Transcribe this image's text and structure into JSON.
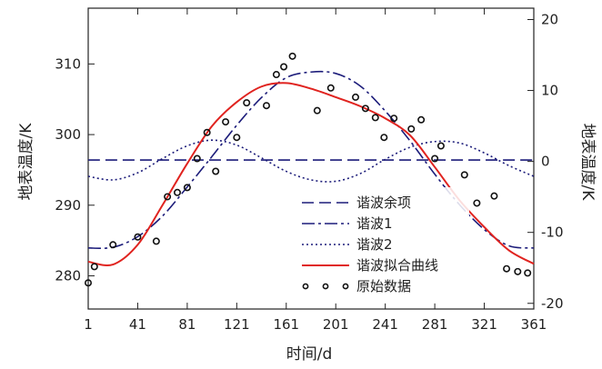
{
  "chart_data": {
    "type": "line",
    "xlabel": "时间/d",
    "ylabel_left": "地表温度/K",
    "ylabel_right": "地表温度/K",
    "xlim": [
      1,
      361
    ],
    "ylim_left": [
      275.3,
      317.9
    ],
    "ylim_right": [
      -20.8,
      21.6
    ],
    "xticks": [
      1,
      41,
      81,
      121,
      161,
      201,
      241,
      281,
      321,
      361
    ],
    "yticks_left": [
      280,
      290,
      300,
      310
    ],
    "yticks_right": [
      -20,
      -10,
      0,
      10,
      20
    ],
    "grid": false,
    "legend_position": "bottom-center",
    "series": [
      {
        "name": "谐波余项",
        "axis": "right",
        "style": "dashed",
        "color": "#1c1c7a",
        "x": [
          1,
          361
        ],
        "y": [
          0.2,
          0.2
        ]
      },
      {
        "name": "谐波1",
        "axis": "right",
        "style": "dash-dot",
        "color": "#1c1c7a",
        "x": [
          1,
          21,
          41,
          61,
          81,
          101,
          121,
          141,
          161,
          181,
          201,
          221,
          241,
          261,
          281,
          301,
          321,
          341,
          361
        ],
        "y": [
          -12.2,
          -12.1,
          -10.6,
          -7.7,
          -3.6,
          0.7,
          5.1,
          9.0,
          11.8,
          12.6,
          12.4,
          10.6,
          7.1,
          2.9,
          -1.8,
          -6.1,
          -9.6,
          -11.9,
          -12.2
        ]
      },
      {
        "name": "谐波2",
        "axis": "right",
        "style": "dotted",
        "color": "#1c1c7a",
        "x": [
          1,
          21,
          41,
          61,
          81,
          101,
          121,
          141,
          161,
          181,
          201,
          221,
          241,
          261,
          281,
          301,
          321,
          341,
          361
        ],
        "y": [
          -2.1,
          -2.6,
          -1.6,
          0.4,
          2.2,
          3.0,
          2.3,
          0.5,
          -1.4,
          -2.6,
          -2.8,
          -1.7,
          0.3,
          2.0,
          2.8,
          2.6,
          1.2,
          -0.6,
          -2.1
        ]
      },
      {
        "name": "谐波拟合曲线",
        "axis": "left",
        "style": "solid",
        "color": "#e0231f",
        "x": [
          1,
          21,
          41,
          61,
          81,
          101,
          121,
          141,
          161,
          181,
          201,
          221,
          241,
          261,
          281,
          301,
          321,
          341,
          361
        ],
        "y": [
          282.0,
          281.6,
          284.4,
          290.0,
          295.9,
          301.2,
          304.6,
          306.8,
          307.3,
          306.5,
          305.3,
          304.0,
          302.3,
          299.9,
          295.4,
          290.7,
          286.9,
          283.6,
          281.7
        ]
      },
      {
        "name": "原始数据",
        "axis": "left",
        "style": "markers",
        "color": "#111111",
        "x": [
          1,
          6,
          21,
          41,
          56,
          65,
          73,
          81,
          89,
          97,
          104,
          112,
          121,
          129,
          145,
          153,
          159,
          166,
          186,
          197,
          217,
          225,
          233,
          240,
          248,
          262,
          270,
          281,
          286,
          305,
          315,
          329,
          339,
          348,
          356
        ],
        "y": [
          279.0,
          281.3,
          284.4,
          285.5,
          284.9,
          291.2,
          291.8,
          292.5,
          296.6,
          300.3,
          294.8,
          301.8,
          299.6,
          304.5,
          304.1,
          308.5,
          309.6,
          311.1,
          303.4,
          306.6,
          305.3,
          303.7,
          302.4,
          299.6,
          302.3,
          300.8,
          302.1,
          296.6,
          298.4,
          294.3,
          290.3,
          291.3,
          281.0,
          280.6,
          280.4
        ]
      }
    ]
  }
}
